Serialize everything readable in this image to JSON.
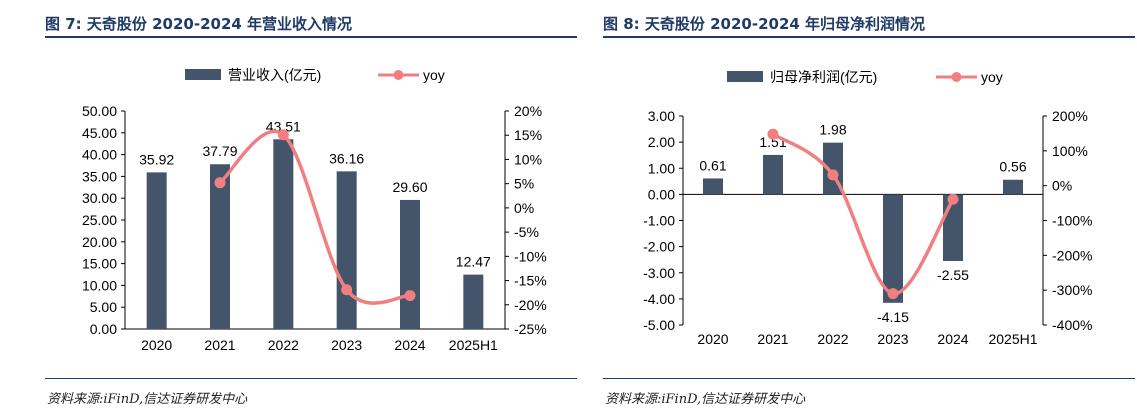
{
  "figures": [
    {
      "title": "图 7:  天奇股份 2020-2024 年营业收入情况",
      "source": "资料来源:iFinD,信达证券研发中心"
    },
    {
      "title": "图 8:  天奇股份 2020-2024 年归母净利润情况",
      "source": "资料来源:iFinD,信达证券研发中心"
    }
  ],
  "colors": {
    "bar": "#44546a",
    "line": "#f08080",
    "heading": "#1f3b66"
  },
  "chart_data": [
    {
      "type": "bar",
      "categories": [
        "2020",
        "2021",
        "2022",
        "2023",
        "2024",
        "2025H1"
      ],
      "series": [
        {
          "name": "营业收入(亿元)",
          "type": "bar",
          "axis": "left",
          "values": [
            35.92,
            37.79,
            43.51,
            36.16,
            29.6,
            12.47
          ],
          "labels": [
            "35.92",
            "37.79",
            "43.51",
            "36.16",
            "29.60",
            "12.47"
          ]
        },
        {
          "name": "yoy",
          "type": "line",
          "axis": "right",
          "values": [
            null,
            5.2,
            15.1,
            -16.9,
            -18.1,
            null
          ]
        }
      ],
      "left_axis": {
        "min": 0,
        "max": 50,
        "step": 5,
        "ticks": [
          "0.00",
          "5.00",
          "10.00",
          "15.00",
          "20.00",
          "25.00",
          "30.00",
          "35.00",
          "40.00",
          "45.00",
          "50.00"
        ]
      },
      "right_axis": {
        "min": -25,
        "max": 20,
        "step": 5,
        "ticks": [
          "-25%",
          "-20%",
          "-15%",
          "-10%",
          "-5%",
          "0%",
          "5%",
          "10%",
          "15%",
          "20%"
        ]
      },
      "legend_position": "top"
    },
    {
      "type": "bar",
      "categories": [
        "2020",
        "2021",
        "2022",
        "2023",
        "2024",
        "2025H1"
      ],
      "series": [
        {
          "name": "归母净利润(亿元)",
          "type": "bar",
          "axis": "left",
          "values": [
            0.61,
            1.51,
            1.98,
            -4.15,
            -2.55,
            0.56
          ],
          "labels": [
            "0.61",
            "1.51",
            "1.98",
            "-4.15",
            "-2.55",
            "0.56"
          ]
        },
        {
          "name": "yoy",
          "type": "line",
          "axis": "right",
          "values": [
            null,
            148,
            31,
            -310,
            -39,
            null
          ]
        }
      ],
      "left_axis": {
        "min": -5,
        "max": 3,
        "step": 1,
        "ticks": [
          "-5.00",
          "-4.00",
          "-3.00",
          "-2.00",
          "-1.00",
          "0.00",
          "1.00",
          "2.00",
          "3.00"
        ]
      },
      "right_axis": {
        "min": -400,
        "max": 200,
        "step": 100,
        "ticks": [
          "-400%",
          "-300%",
          "-200%",
          "-100%",
          "0%",
          "100%",
          "200%"
        ]
      },
      "legend_position": "top"
    }
  ]
}
